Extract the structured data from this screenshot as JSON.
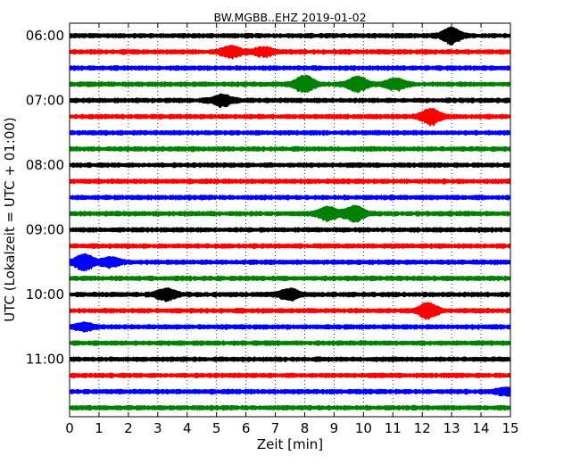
{
  "chart_data": {
    "type": "line",
    "title": "BW.MGBB..EHZ 2019-01-02",
    "xlabel": "Zeit  [min]",
    "ylabel": "UTC (Lokalzeit = UTC + 01:00)",
    "xlim": [
      0,
      15
    ],
    "x_ticks": [
      "0",
      "1",
      "2",
      "3",
      "4",
      "5",
      "6",
      "7",
      "8",
      "9",
      "10",
      "11",
      "12",
      "13",
      "14",
      "15"
    ],
    "y_tick_labels": [
      "06:00",
      "07:00",
      "08:00",
      "09:00",
      "10:00",
      "11:00"
    ],
    "y_tick_rows": [
      0,
      4,
      8,
      12,
      16,
      20
    ],
    "row_interval_minutes": 15,
    "row_count": 24,
    "grid": "vertical dotted",
    "trace_colors": [
      "#000000",
      "#ff0000",
      "#0000ff",
      "#008000"
    ],
    "events": [
      {
        "row": 0,
        "minute": 13.0,
        "amp": 7
      },
      {
        "row": 1,
        "minute": 5.5,
        "amp": 5
      },
      {
        "row": 1,
        "minute": 6.6,
        "amp": 4
      },
      {
        "row": 3,
        "minute": 8.0,
        "amp": 8
      },
      {
        "row": 3,
        "minute": 9.8,
        "amp": 7
      },
      {
        "row": 3,
        "minute": 11.1,
        "amp": 5
      },
      {
        "row": 4,
        "minute": 5.2,
        "amp": 5
      },
      {
        "row": 5,
        "minute": 12.3,
        "amp": 7
      },
      {
        "row": 11,
        "minute": 8.8,
        "amp": 6
      },
      {
        "row": 11,
        "minute": 9.7,
        "amp": 7
      },
      {
        "row": 14,
        "minute": 0.5,
        "amp": 7
      },
      {
        "row": 14,
        "minute": 1.4,
        "amp": 4
      },
      {
        "row": 16,
        "minute": 3.3,
        "amp": 5
      },
      {
        "row": 16,
        "minute": 7.5,
        "amp": 5
      },
      {
        "row": 17,
        "minute": 12.2,
        "amp": 7
      },
      {
        "row": 18,
        "minute": 0.5,
        "amp": 3
      },
      {
        "row": 22,
        "minute": 14.8,
        "amp": 3
      }
    ]
  }
}
